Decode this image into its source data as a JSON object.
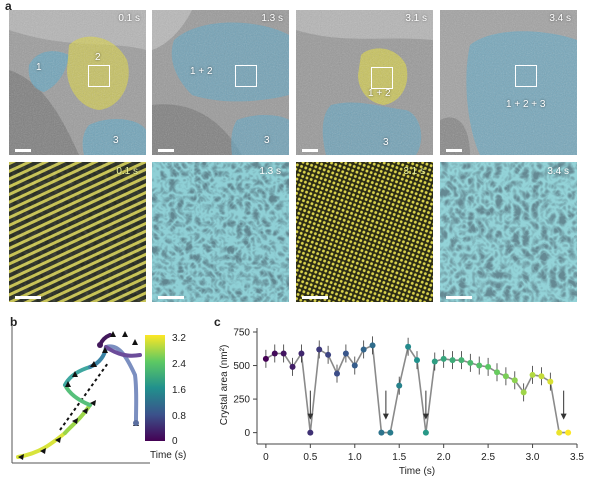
{
  "panel_labels": {
    "a": "a",
    "b": "b",
    "c": "c"
  },
  "top_row": [
    {
      "time": "0.1 s",
      "regions": [
        "1",
        "2",
        "3"
      ]
    },
    {
      "time": "1.3 s",
      "regions": [
        "1 + 2",
        "3"
      ]
    },
    {
      "time": "3.1 s",
      "regions": [
        "1 + 2",
        "3"
      ]
    },
    {
      "time": "3.4 s",
      "regions": [
        "1 + 2 + 3"
      ]
    }
  ],
  "bottom_row": [
    {
      "time": "0.1 s"
    },
    {
      "time": "1.3 s"
    },
    {
      "time": "3.1 s"
    },
    {
      "time": "3.4 s"
    }
  ],
  "colorbar": {
    "label": "Time (s)",
    "ticks": [
      "3.2",
      "2.4",
      "1.6",
      "0.8",
      "0"
    ]
  },
  "colors": {
    "blue_region": "#5aa9c9",
    "yellow_region": "#d8d24a",
    "line_grey": "#8a8a8a"
  },
  "chart_data": {
    "type": "line",
    "xlabel": "Time (s)",
    "ylabel": "Crystal area (nm²)",
    "xlim": [
      -0.1,
      3.5
    ],
    "ylim": [
      -40,
      750
    ],
    "xticks": [
      "0",
      "0.5",
      "1.0",
      "1.5",
      "2.0",
      "2.5",
      "3.0",
      "3.5"
    ],
    "yticks": [
      "0",
      "250",
      "500",
      "750"
    ],
    "x": [
      0.0,
      0.1,
      0.2,
      0.3,
      0.4,
      0.5,
      0.6,
      0.7,
      0.8,
      0.9,
      1.0,
      1.1,
      1.2,
      1.3,
      1.4,
      1.5,
      1.6,
      1.7,
      1.8,
      1.9,
      2.0,
      2.1,
      2.2,
      2.3,
      2.4,
      2.5,
      2.6,
      2.7,
      2.8,
      2.9,
      3.0,
      3.1,
      3.2,
      3.3,
      3.4
    ],
    "y": [
      550,
      590,
      590,
      490,
      590,
      0,
      620,
      580,
      440,
      590,
      500,
      620,
      650,
      0,
      0,
      350,
      640,
      540,
      0,
      530,
      550,
      540,
      540,
      520,
      500,
      490,
      450,
      420,
      390,
      300,
      430,
      420,
      380,
      0,
      0
    ],
    "annotations": [
      {
        "x": 0.5,
        "y": 0,
        "label": "↓"
      },
      {
        "x": 1.35,
        "y": 0,
        "label": "↓"
      },
      {
        "x": 1.8,
        "y": 0,
        "label": "↓"
      },
      {
        "x": 3.35,
        "y": 0,
        "label": "↓"
      }
    ]
  },
  "trajectory": {
    "points_t": [
      0.0,
      0.4,
      0.8,
      1.2,
      1.4,
      1.8,
      2.0,
      2.2,
      2.4,
      2.6,
      2.8,
      3.0,
      3.2
    ]
  }
}
